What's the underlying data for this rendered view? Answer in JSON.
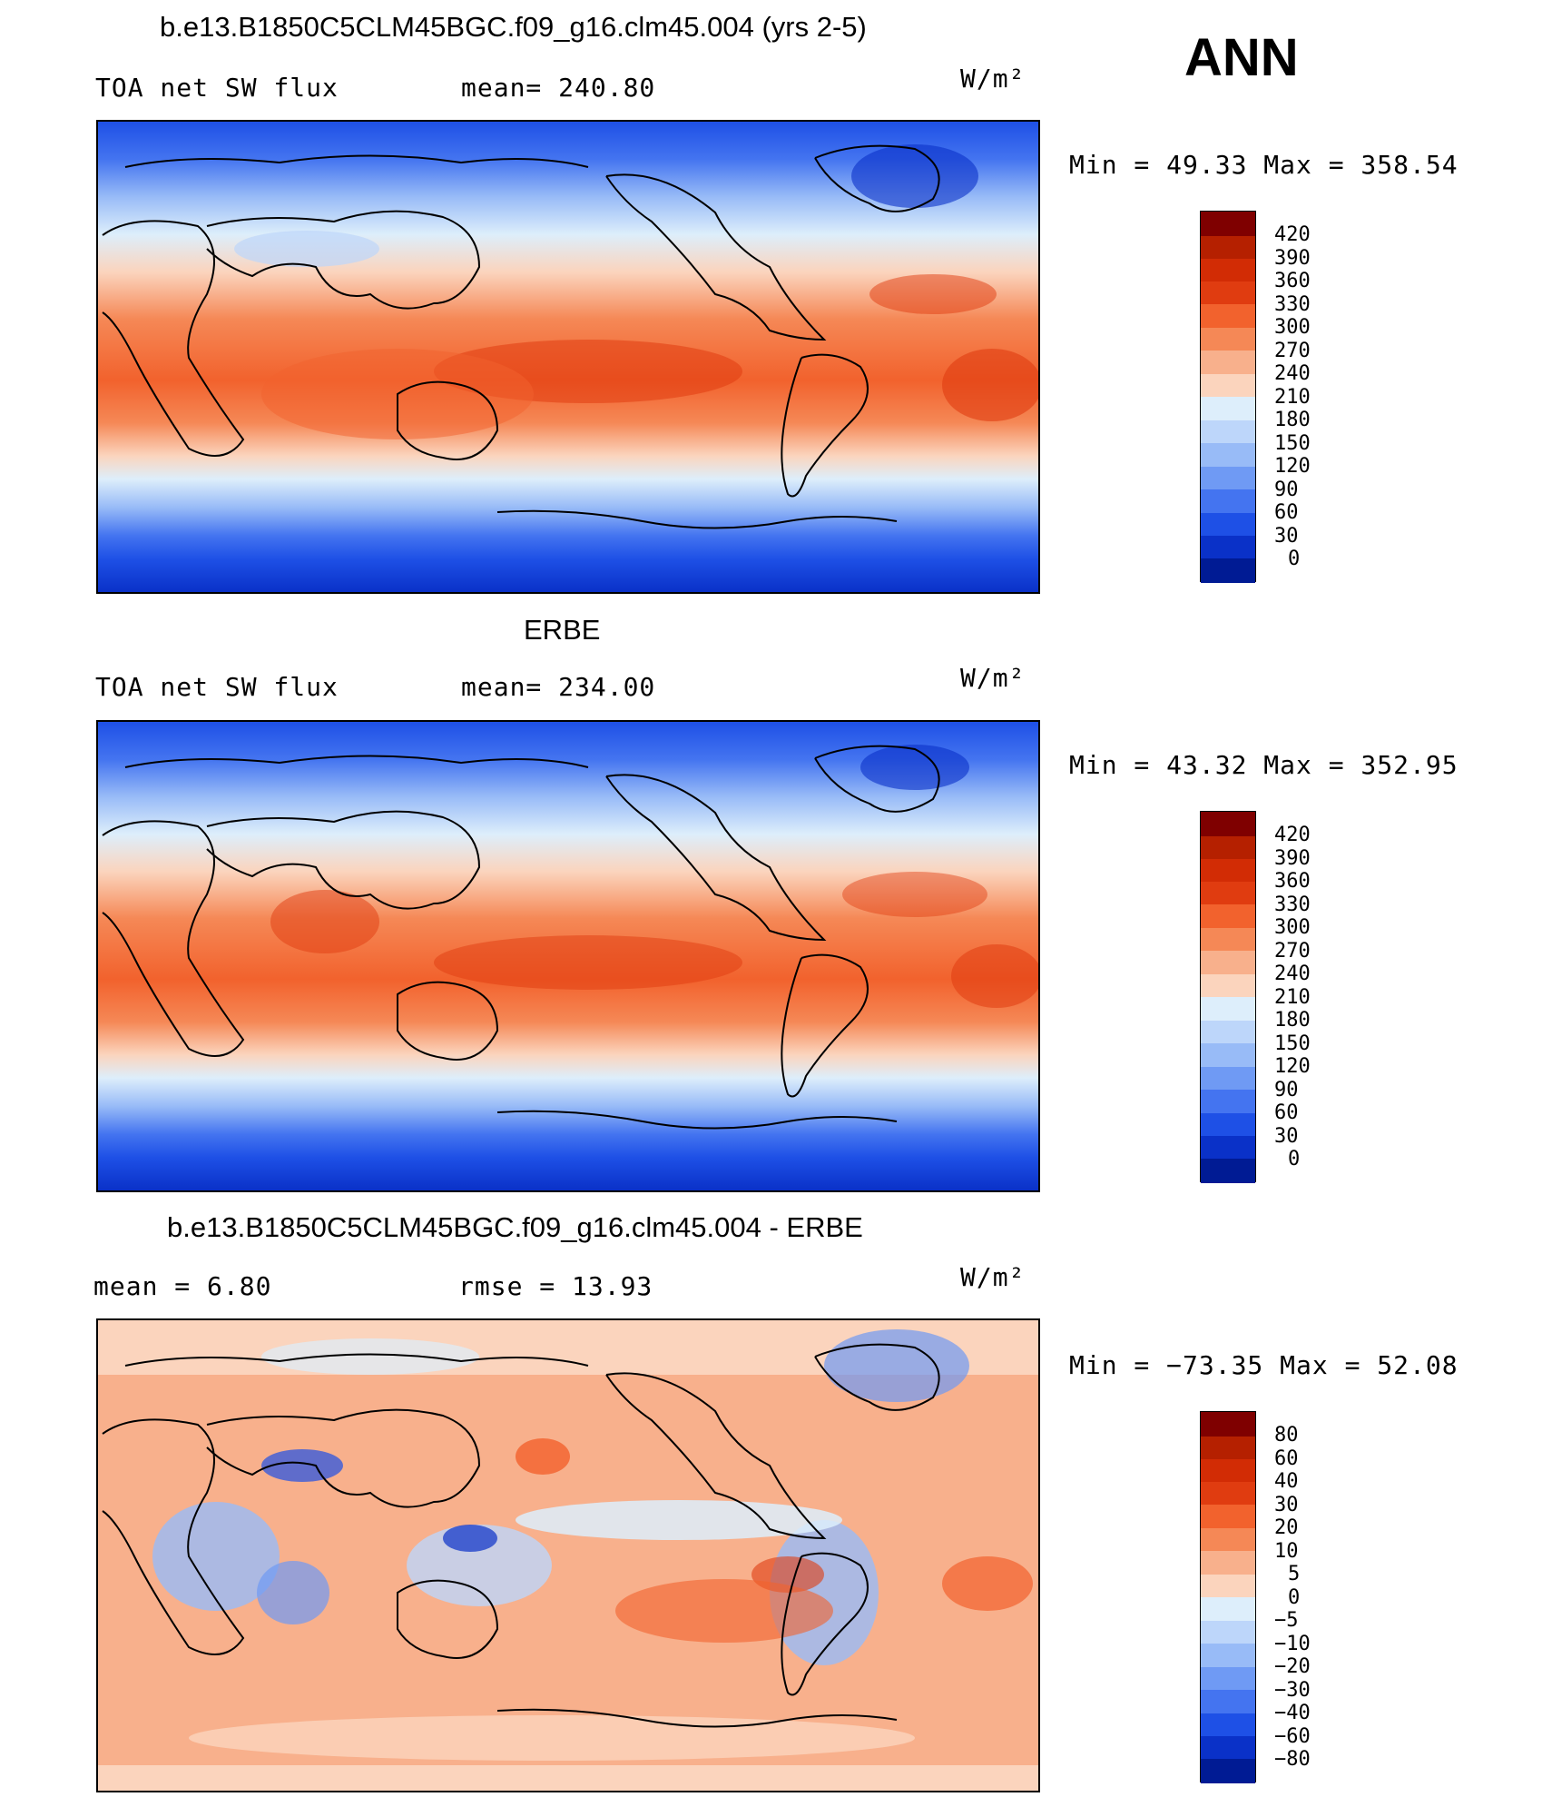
{
  "season": "ANN",
  "units": "W/m²",
  "panels": [
    {
      "title": "b.e13.B1850C5CLM45BGC.f09_g16.clm45.004 (yrs 2-5)",
      "left_label": "TOA net SW flux",
      "center_label": "mean= 240.80",
      "units": "W/m²",
      "stats": "Min =   49.33 Max = 358.54",
      "colorbar": [
        "420",
        "390",
        "360",
        "330",
        "300",
        "270",
        "240",
        "210",
        "180",
        "150",
        "120",
        "90",
        "60",
        "30",
        "0"
      ]
    },
    {
      "title": "ERBE",
      "left_label": "TOA net SW flux",
      "center_label": "mean= 234.00",
      "units": "W/m²",
      "stats": "Min =   43.32 Max = 352.95",
      "colorbar": [
        "420",
        "390",
        "360",
        "330",
        "300",
        "270",
        "240",
        "210",
        "180",
        "150",
        "120",
        "90",
        "60",
        "30",
        "0"
      ]
    },
    {
      "title": "b.e13.B1850C5CLM45BGC.f09_g16.clm45.004 - ERBE",
      "left_label": "mean =    6.80",
      "center_label": "rmse =   13.93",
      "units": "W/m²",
      "stats": "Min = −73.35 Max =   52.08",
      "colorbar": [
        "80",
        "60",
        "40",
        "30",
        "20",
        "10",
        "5",
        "0",
        "−5",
        "−10",
        "−20",
        "−30",
        "−40",
        "−60",
        "−80"
      ]
    }
  ],
  "colors": {
    "abs_scale": [
      "#7f0000",
      "#b52000",
      "#e03c10",
      "#f2622d",
      "#f58856",
      "#f8b08c",
      "#fbd4bd",
      "#fdeee1",
      "#ddeefb",
      "#bdd6fa",
      "#98bbf7",
      "#6f9af4",
      "#4474f0",
      "#1e50e6",
      "#0a31c8",
      "#001b94"
    ],
    "diff_scale": [
      "#7f0000",
      "#b52000",
      "#e03c10",
      "#f2622d",
      "#f58856",
      "#f8b08c",
      "#fbd4bd",
      "#fdeee1",
      "#ddeefb",
      "#bdd6fa",
      "#98bbf7",
      "#6f9af4",
      "#4474f0",
      "#1e50e6",
      "#0a31c8",
      "#001b94"
    ]
  }
}
